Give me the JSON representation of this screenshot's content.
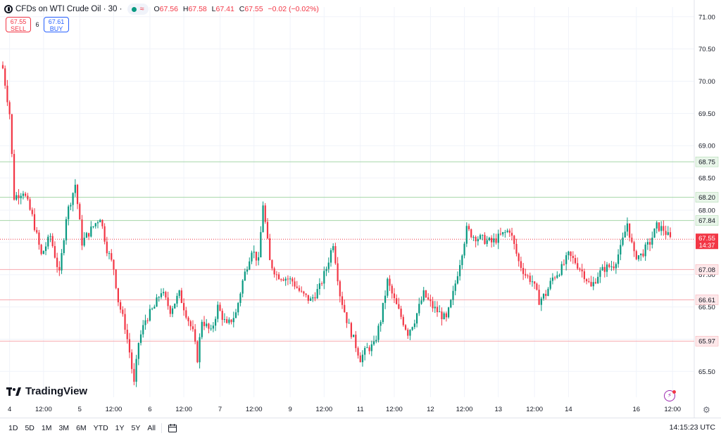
{
  "header": {
    "title": "CFDs on WTI Crude Oil · 30 ·",
    "ohlc": [
      {
        "label": "O",
        "value": "67.56"
      },
      {
        "label": "H",
        "value": "67.58"
      },
      {
        "label": "L",
        "value": "67.41"
      },
      {
        "label": "C",
        "value": "67.55"
      }
    ],
    "change": "−0.02 (−0.02%)"
  },
  "trade": {
    "sell_price": "67.55",
    "sell_label": "SELL",
    "spread": "6",
    "buy_price": "67.61",
    "buy_label": "BUY"
  },
  "logo_text": "TradingView",
  "bottom_bar": {
    "ranges": [
      "1D",
      "5D",
      "1M",
      "3M",
      "6M",
      "YTD",
      "1Y",
      "5Y",
      "All"
    ],
    "clock": "14:15:23 UTC"
  },
  "colors": {
    "up": "#089981",
    "down": "#f23645",
    "support_line": "#f7a8ae",
    "resistance_line": "#a5d6a7"
  },
  "chart_data": {
    "type": "candlestick",
    "y_range": [
      65.1,
      71.15
    ],
    "y_ticks": [
      "65.50",
      "66.00",
      "66.50",
      "67.00",
      "67.50",
      "68.00",
      "68.50",
      "69.00",
      "69.50",
      "70.00",
      "70.50",
      "71.00"
    ],
    "x_ticks": [
      {
        "label": "4",
        "bar": 3
      },
      {
        "label": "12:00",
        "bar": 18
      },
      {
        "label": "5",
        "bar": 34
      },
      {
        "label": "12:00",
        "bar": 49
      },
      {
        "label": "6",
        "bar": 65
      },
      {
        "label": "12:00",
        "bar": 80
      },
      {
        "label": "7",
        "bar": 96
      },
      {
        "label": "12:00",
        "bar": 111
      },
      {
        "label": "9",
        "bar": 127
      },
      {
        "label": "12:00",
        "bar": 142
      },
      {
        "label": "11",
        "bar": 158
      },
      {
        "label": "12:00",
        "bar": 173
      },
      {
        "label": "12",
        "bar": 189
      },
      {
        "label": "12:00",
        "bar": 204
      },
      {
        "label": "13",
        "bar": 219
      },
      {
        "label": "12:00",
        "bar": 235
      },
      {
        "label": "14",
        "bar": 250
      },
      {
        "label": "16",
        "bar": 280
      },
      {
        "label": "12:00",
        "bar": 296
      }
    ],
    "levels": [
      {
        "value": 68.75,
        "label": "68.75",
        "kind": "resistance"
      },
      {
        "value": 68.2,
        "label": "68.20",
        "kind": "resistance"
      },
      {
        "value": 67.84,
        "label": "67.84",
        "kind": "resistance"
      },
      {
        "value": 67.08,
        "label": "67.08",
        "kind": "support"
      },
      {
        "value": 66.61,
        "label": "66.61",
        "kind": "support"
      },
      {
        "value": 65.97,
        "label": "65.97",
        "kind": "support"
      }
    ],
    "last_price": {
      "value": 67.55,
      "label": "67.55",
      "countdown": "14:37"
    },
    "close_path": [
      [
        0,
        70.2
      ],
      [
        3,
        69.5
      ],
      [
        5,
        68.2
      ],
      [
        9,
        68.3
      ],
      [
        13,
        67.9
      ],
      [
        17,
        67.3
      ],
      [
        21,
        67.6
      ],
      [
        25,
        67.0
      ],
      [
        28,
        67.9
      ],
      [
        32,
        68.4
      ],
      [
        35,
        67.5
      ],
      [
        39,
        67.7
      ],
      [
        43,
        67.9
      ],
      [
        46,
        67.4
      ],
      [
        49,
        67.1
      ],
      [
        51,
        66.6
      ],
      [
        54,
        66.2
      ],
      [
        56,
        65.8
      ],
      [
        58,
        65.3
      ],
      [
        60,
        65.95
      ],
      [
        63,
        66.3
      ],
      [
        67,
        66.5
      ],
      [
        70,
        66.75
      ],
      [
        74,
        66.45
      ],
      [
        78,
        66.7
      ],
      [
        81,
        66.4
      ],
      [
        84,
        66.1
      ],
      [
        86,
        65.7
      ],
      [
        88,
        66.3
      ],
      [
        92,
        66.1
      ],
      [
        95,
        66.5
      ],
      [
        99,
        66.2
      ],
      [
        103,
        66.4
      ],
      [
        106,
        66.9
      ],
      [
        110,
        67.4
      ],
      [
        113,
        67.2
      ],
      [
        115,
        68.1
      ],
      [
        118,
        67.2
      ],
      [
        121,
        67.0
      ],
      [
        125,
        66.95
      ],
      [
        128,
        66.9
      ],
      [
        132,
        66.7
      ],
      [
        136,
        66.6
      ],
      [
        140,
        66.8
      ],
      [
        143,
        67.1
      ],
      [
        146,
        67.5
      ],
      [
        149,
        66.7
      ],
      [
        152,
        66.3
      ],
      [
        155,
        66.0
      ],
      [
        158,
        65.7
      ],
      [
        161,
        65.85
      ],
      [
        164,
        65.9
      ],
      [
        167,
        66.3
      ],
      [
        170,
        66.9
      ],
      [
        173,
        66.6
      ],
      [
        176,
        66.35
      ],
      [
        179,
        66.1
      ],
      [
        182,
        66.3
      ],
      [
        186,
        66.7
      ],
      [
        190,
        66.5
      ],
      [
        193,
        66.4
      ],
      [
        196,
        66.3
      ],
      [
        199,
        66.7
      ],
      [
        202,
        67.2
      ],
      [
        205,
        67.7
      ],
      [
        208,
        67.6
      ],
      [
        212,
        67.55
      ],
      [
        216,
        67.5
      ],
      [
        220,
        67.6
      ],
      [
        224,
        67.7
      ],
      [
        228,
        67.2
      ],
      [
        231,
        67.0
      ],
      [
        234,
        66.9
      ],
      [
        237,
        66.6
      ],
      [
        240,
        66.7
      ],
      [
        243,
        66.95
      ],
      [
        247,
        67.1
      ],
      [
        250,
        67.3
      ],
      [
        253,
        67.2
      ],
      [
        257,
        67.0
      ],
      [
        260,
        66.8
      ],
      [
        263,
        67.0
      ],
      [
        266,
        67.1
      ],
      [
        270,
        67.15
      ],
      [
        273,
        67.4
      ],
      [
        276,
        67.8
      ],
      [
        279,
        67.3
      ],
      [
        282,
        67.3
      ],
      [
        286,
        67.5
      ],
      [
        289,
        67.75
      ],
      [
        292,
        67.7
      ],
      [
        295,
        67.55
      ]
    ]
  }
}
